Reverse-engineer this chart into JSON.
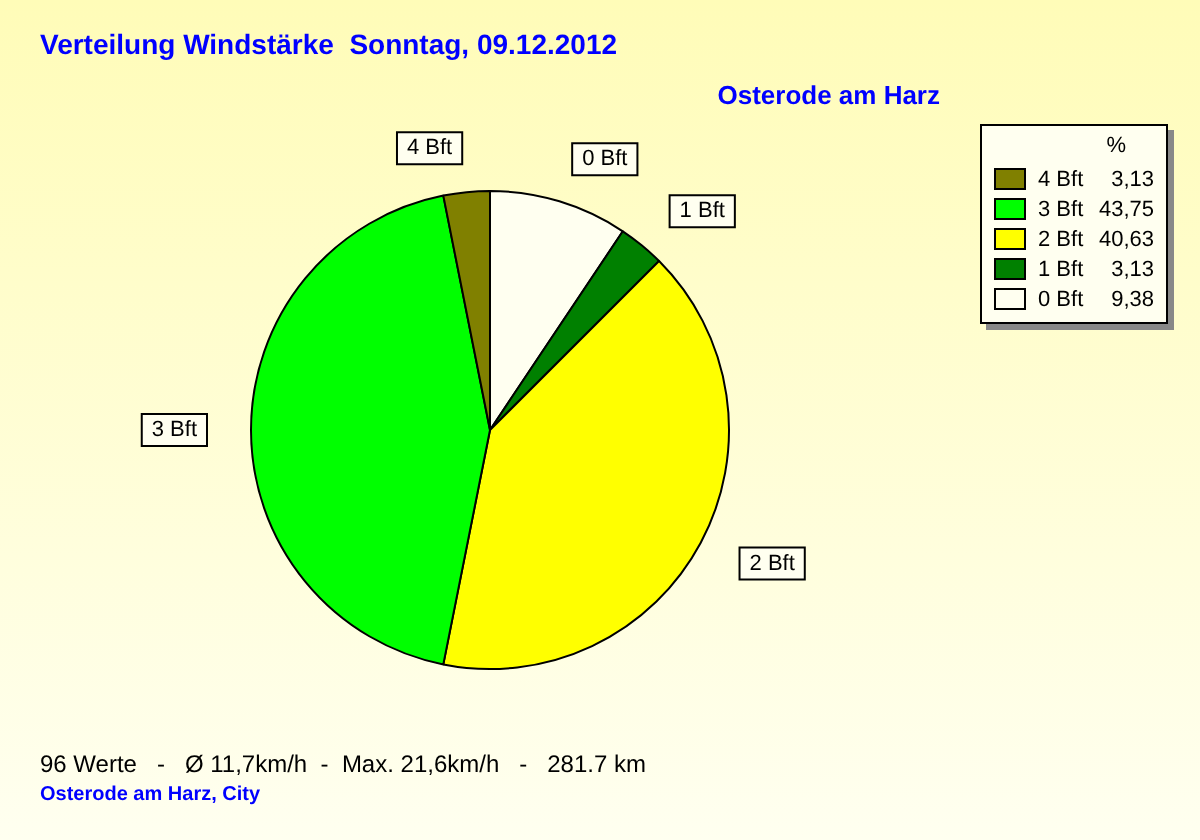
{
  "chart_data": {
    "type": "pie",
    "title": "Verteilung Windstärke  Sonntag, 09.12.2012",
    "subtitle": "Osterode am Harz",
    "categories": [
      "0 Bft",
      "1 Bft",
      "2 Bft",
      "3 Bft",
      "4 Bft"
    ],
    "values": [
      9.38,
      3.13,
      40.63,
      43.75,
      3.13
    ],
    "value_labels": [
      "9,38",
      "3,13",
      "40,63",
      "43,75",
      "3,13"
    ],
    "colors": [
      "#fffff0",
      "#008000",
      "#ffff00",
      "#00ff00",
      "#808000"
    ],
    "legend": "top right",
    "legend_title": "%",
    "annotations": [
      "96 Werte   -   Ø 11,7km/h  -  Max. 21,6km/h   -   281.7 km",
      "Osterode am Harz, City"
    ]
  }
}
